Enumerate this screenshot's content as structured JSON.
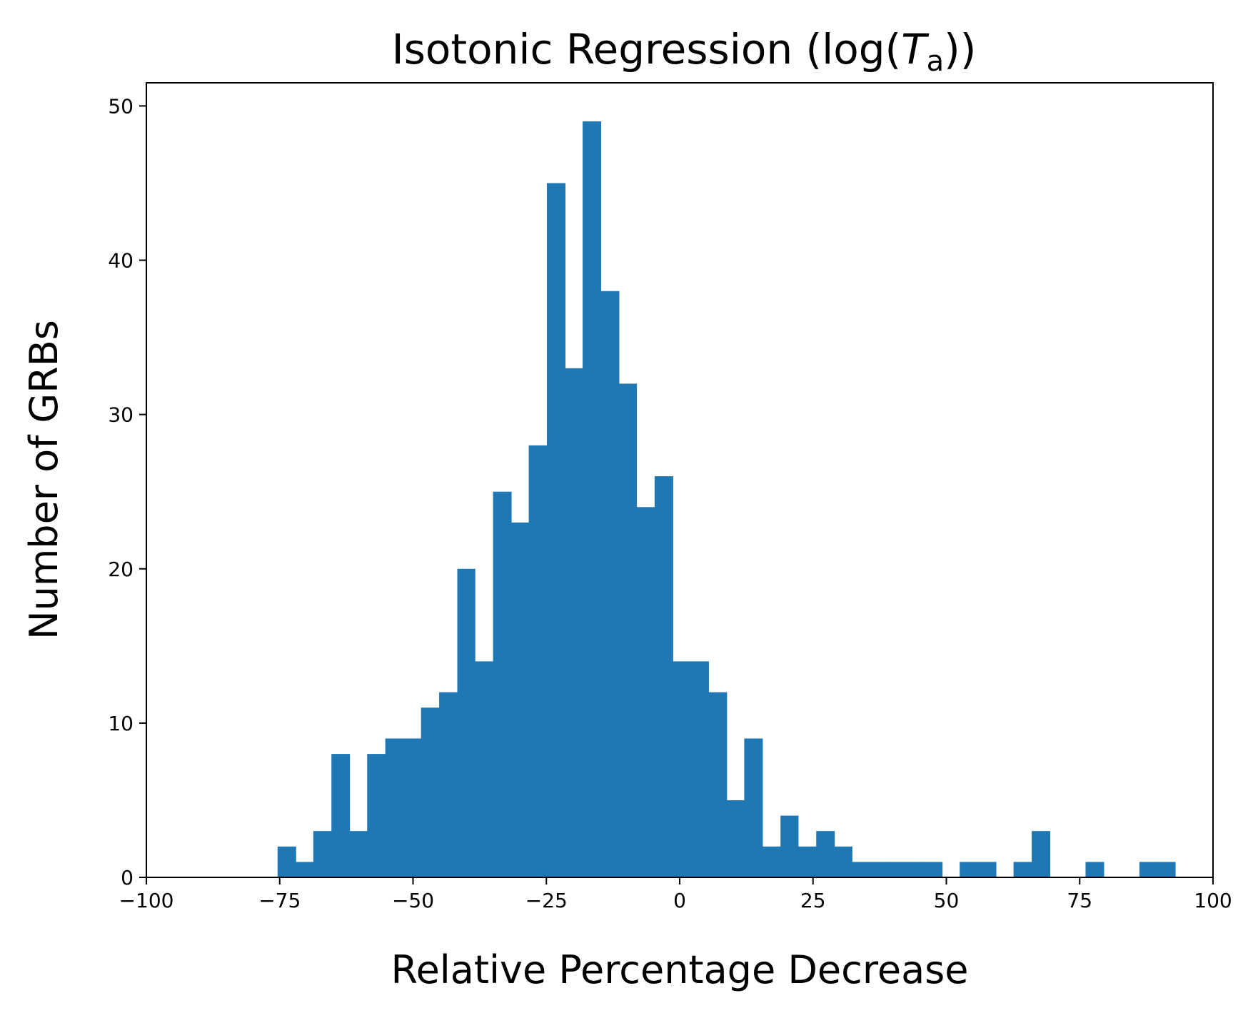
{
  "chart_data": {
    "type": "bar",
    "title": "Isotonic Regression (log(",
    "title_symbol": "T",
    "title_subscript": "a",
    "title_end": "))",
    "xlabel": "Relative Percentage Decrease",
    "ylabel": "Number of GRBs",
    "xlim": [
      -100,
      100
    ],
    "ylim": [
      0,
      51.5
    ],
    "xticks": [
      "−100",
      "−75",
      "−50",
      "−25",
      "0",
      "25",
      "50",
      "75",
      "100"
    ],
    "xtick_values": [
      -100,
      -75,
      -50,
      -25,
      0,
      25,
      50,
      75,
      100
    ],
    "yticks": [
      "0",
      "10",
      "20",
      "30",
      "40",
      "50"
    ],
    "ytick_values": [
      0,
      10,
      20,
      30,
      40,
      50
    ],
    "bar_color": "#1f77b4",
    "bins": [
      {
        "x0": -75.4,
        "x1": -72.0,
        "count": 2
      },
      {
        "x0": -72.0,
        "x1": -68.7,
        "count": 1
      },
      {
        "x0": -68.7,
        "x1": -65.3,
        "count": 3
      },
      {
        "x0": -65.3,
        "x1": -61.9,
        "count": 8
      },
      {
        "x0": -61.9,
        "x1": -58.6,
        "count": 3
      },
      {
        "x0": -58.6,
        "x1": -55.2,
        "count": 8
      },
      {
        "x0": -55.2,
        "x1": -51.8,
        "count": 9
      },
      {
        "x0": -51.8,
        "x1": -48.5,
        "count": 9
      },
      {
        "x0": -48.5,
        "x1": -45.1,
        "count": 11
      },
      {
        "x0": -45.1,
        "x1": -41.7,
        "count": 12
      },
      {
        "x0": -41.7,
        "x1": -38.4,
        "count": 20
      },
      {
        "x0": -38.4,
        "x1": -35.0,
        "count": 14
      },
      {
        "x0": -35.0,
        "x1": -31.6,
        "count": 25
      },
      {
        "x0": -31.6,
        "x1": -28.3,
        "count": 23
      },
      {
        "x0": -28.3,
        "x1": -24.9,
        "count": 28
      },
      {
        "x0": -24.9,
        "x1": -21.5,
        "count": 45
      },
      {
        "x0": -21.5,
        "x1": -18.2,
        "count": 33
      },
      {
        "x0": -18.2,
        "x1": -14.8,
        "count": 49
      },
      {
        "x0": -14.8,
        "x1": -11.4,
        "count": 38
      },
      {
        "x0": -11.4,
        "x1": -8.1,
        "count": 32
      },
      {
        "x0": -8.1,
        "x1": -4.7,
        "count": 24
      },
      {
        "x0": -4.7,
        "x1": -1.3,
        "count": 26
      },
      {
        "x0": -1.3,
        "x1": 2.0,
        "count": 14
      },
      {
        "x0": 2.0,
        "x1": 5.4,
        "count": 14
      },
      {
        "x0": 5.4,
        "x1": 8.8,
        "count": 12
      },
      {
        "x0": 8.8,
        "x1": 12.1,
        "count": 5
      },
      {
        "x0": 12.1,
        "x1": 15.5,
        "count": 9
      },
      {
        "x0": 15.5,
        "x1": 18.9,
        "count": 2
      },
      {
        "x0": 18.9,
        "x1": 22.2,
        "count": 4
      },
      {
        "x0": 22.2,
        "x1": 25.6,
        "count": 2
      },
      {
        "x0": 25.6,
        "x1": 29.0,
        "count": 3
      },
      {
        "x0": 29.0,
        "x1": 32.3,
        "count": 2
      },
      {
        "x0": 32.3,
        "x1": 35.7,
        "count": 1
      },
      {
        "x0": 35.7,
        "x1": 39.1,
        "count": 1
      },
      {
        "x0": 39.1,
        "x1": 42.4,
        "count": 1
      },
      {
        "x0": 42.4,
        "x1": 45.8,
        "count": 1
      },
      {
        "x0": 45.8,
        "x1": 49.2,
        "count": 1
      },
      {
        "x0": 49.2,
        "x1": 52.5,
        "count": 0
      },
      {
        "x0": 52.5,
        "x1": 55.9,
        "count": 1
      },
      {
        "x0": 55.9,
        "x1": 59.3,
        "count": 1
      },
      {
        "x0": 59.3,
        "x1": 62.6,
        "count": 0
      },
      {
        "x0": 62.6,
        "x1": 66.0,
        "count": 1
      },
      {
        "x0": 66.0,
        "x1": 69.4,
        "count": 3
      },
      {
        "x0": 69.4,
        "x1": 72.7,
        "count": 0
      },
      {
        "x0": 72.7,
        "x1": 76.1,
        "count": 0
      },
      {
        "x0": 76.1,
        "x1": 79.5,
        "count": 1
      },
      {
        "x0": 79.5,
        "x1": 82.8,
        "count": 0
      },
      {
        "x0": 82.8,
        "x1": 86.2,
        "count": 0
      },
      {
        "x0": 86.2,
        "x1": 89.6,
        "count": 1
      },
      {
        "x0": 89.6,
        "x1": 92.9,
        "count": 1
      }
    ]
  }
}
